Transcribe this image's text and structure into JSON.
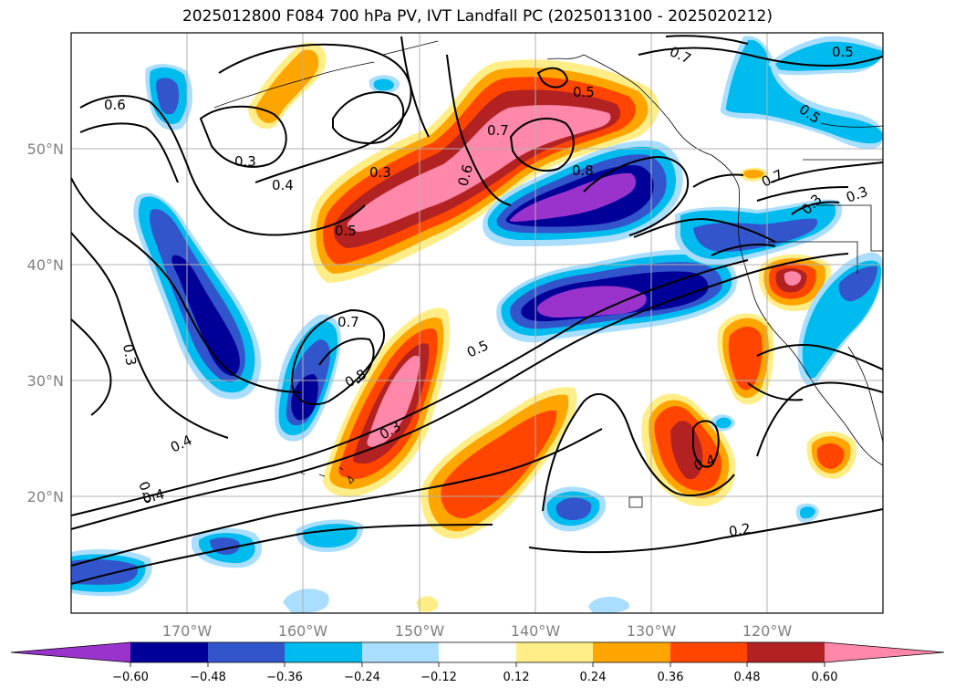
{
  "title": "2025012800 F084 700 hPa PV, IVT Landfall PC (2025013100 - 2025020212)",
  "colors": {
    "n_over": "#9933cc",
    "n6": "#000099",
    "n5": "#3355cc",
    "n4": "#00bbee",
    "n3": "#aadeff",
    "p2": "#ffee88",
    "p3": "#ffa500",
    "p4": "#ff4500",
    "p5": "#b22222",
    "p6": "#ff88aa",
    "contour": "#000000",
    "coast": "#000000",
    "grid": "#b0b0b0",
    "axis_label": "#808080"
  },
  "map": {
    "lon_labels": [
      "170°W",
      "160°W",
      "150°W",
      "140°W",
      "130°W",
      "120°W"
    ],
    "lat_labels": [
      "50°N",
      "40°N",
      "30°N",
      "20°N"
    ],
    "pv_contour_labels": [
      "0.6",
      "0.3",
      "0.4",
      "0.5",
      "0.3",
      "0.6",
      "0.5",
      "0.7",
      "0.7",
      "0.5",
      "0.8",
      "0.8",
      "0.3",
      "0.5",
      "0.4",
      "0.5",
      "0.4",
      "0.3",
      "0.7",
      "0.7",
      "0.3",
      "0.5",
      "0.3",
      "0.4",
      "0.2"
    ]
  },
  "colorbar": {
    "ticks": [
      "−0.60",
      "−0.48",
      "−0.36",
      "−0.24",
      "−0.12",
      "0.12",
      "0.24",
      "0.36",
      "0.48",
      "0.60"
    ]
  }
}
